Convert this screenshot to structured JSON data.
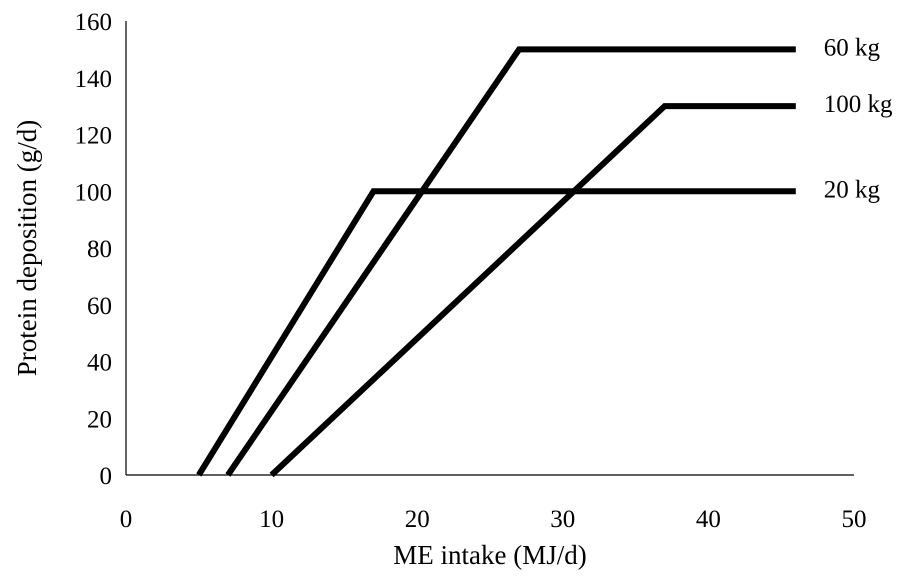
{
  "chart_data": {
    "type": "line",
    "title": "",
    "xlabel": "ME intake (MJ/d)",
    "ylabel": "Protein deposition (g/d)",
    "xlim": [
      0,
      50
    ],
    "ylim": [
      0,
      160
    ],
    "xticks": [
      0,
      10,
      20,
      30,
      40,
      50
    ],
    "yticks": [
      0,
      20,
      40,
      60,
      80,
      100,
      120,
      140,
      160
    ],
    "grid": false,
    "legend": "none",
    "series_color": "#000000",
    "series": [
      {
        "name": "60 kg",
        "x": [
          7,
          27,
          46
        ],
        "y": [
          0,
          150,
          150
        ]
      },
      {
        "name": "100 kg",
        "x": [
          10,
          37,
          46
        ],
        "y": [
          0,
          130,
          130
        ]
      },
      {
        "name": "20 kg",
        "x": [
          5,
          17,
          46
        ],
        "y": [
          0,
          100,
          100
        ]
      }
    ]
  }
}
